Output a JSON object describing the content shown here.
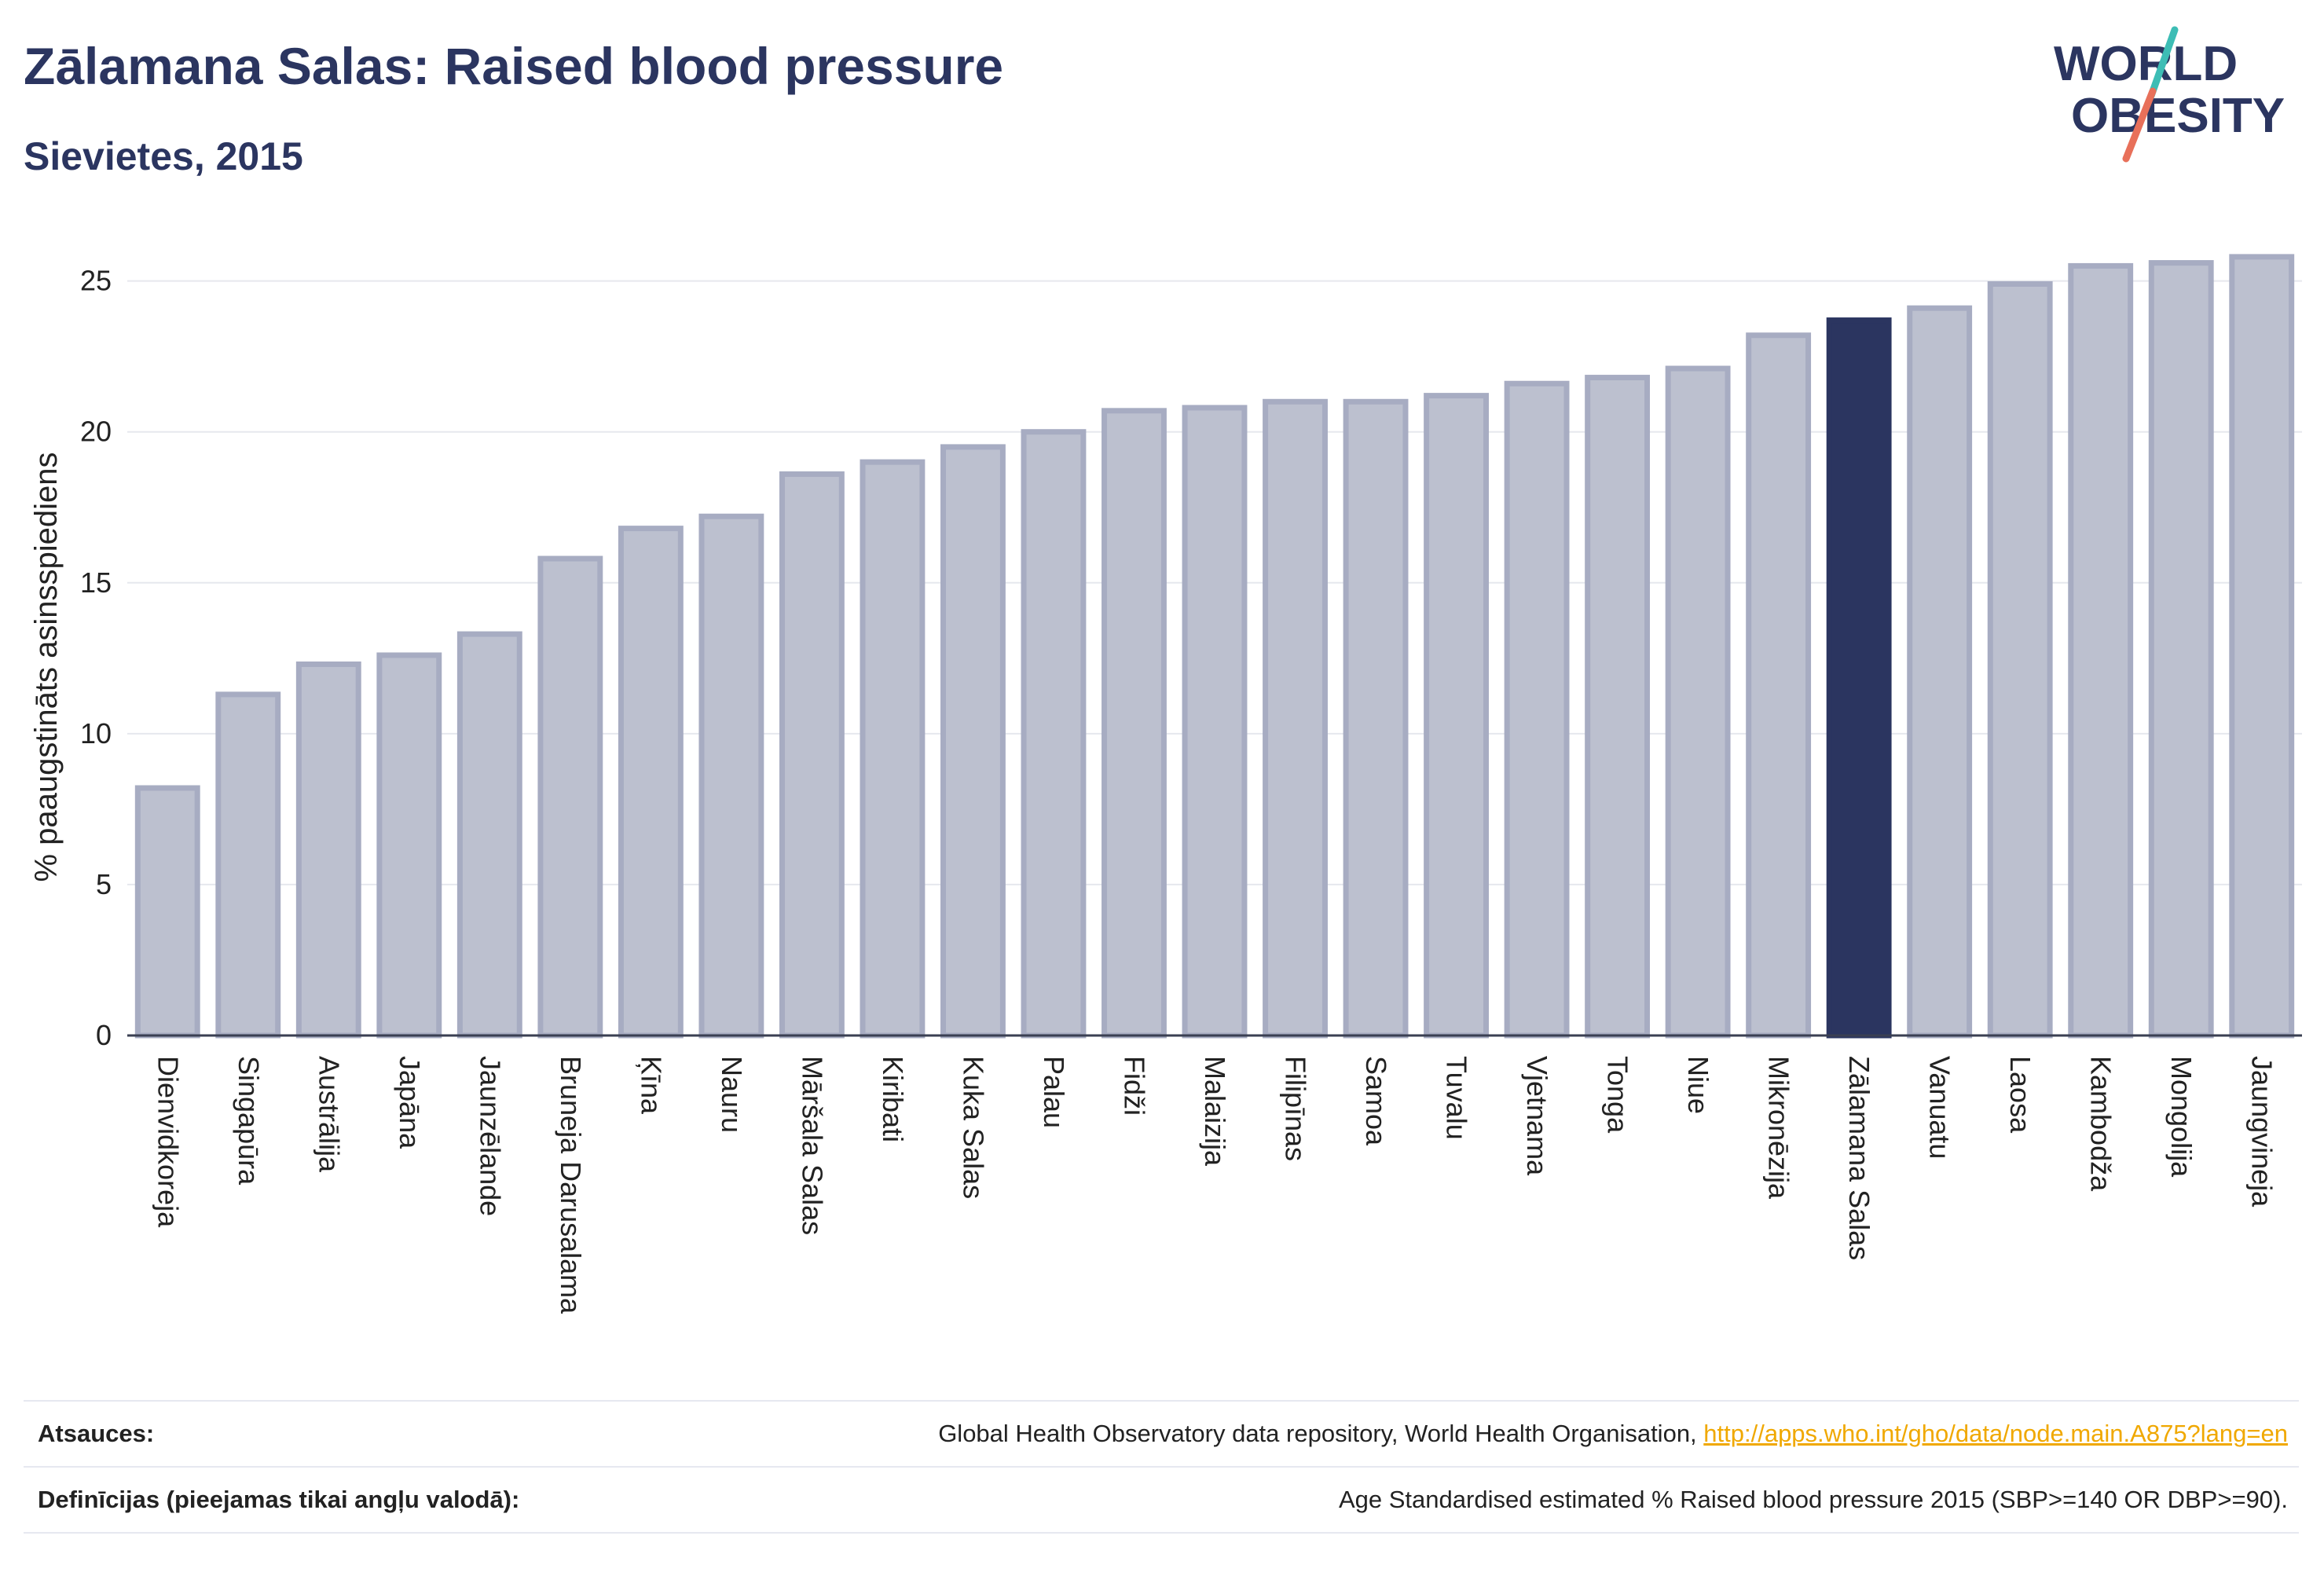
{
  "header": {
    "title": "Zālamana Salas: Raised blood pressure",
    "subtitle": "Sievietes, 2015"
  },
  "logo": {
    "line1": "WORLD",
    "line2": "OBESITY",
    "accent_teal": "#3dbdb5",
    "accent_coral": "#e8705a"
  },
  "chart_data": {
    "type": "bar",
    "ylabel": "% paaugstināts asinsspiediens",
    "ylim": [
      0,
      26.5
    ],
    "yticks": [
      0,
      5,
      10,
      15,
      20,
      25
    ],
    "grid": true,
    "highlight": "Zālamana Salas",
    "colors": {
      "bar": "#bcc0cf",
      "bar_border": "#a7acc2",
      "highlight": "#2b3560"
    },
    "categories": [
      "Dienvidkoreja",
      "Singapūra",
      "Austrālija",
      "Japāna",
      "Jaunzēlande",
      "Bruneja Darusalama",
      "Ķīna",
      "Nauru",
      "Māršala Salas",
      "Kiribati",
      "Kuka Salas",
      "Palau",
      "Fidži",
      "Malaizija",
      "Filipīnas",
      "Samoa",
      "Tuvalu",
      "Vjetnama",
      "Tonga",
      "Niue",
      "Mikronēzija",
      "Zālamana Salas",
      "Vanuatu",
      "Laosa",
      "Kambodža",
      "Mongolija",
      "Jaungvineja"
    ],
    "values": [
      8.2,
      11.3,
      12.3,
      12.6,
      13.3,
      15.8,
      16.8,
      17.2,
      18.6,
      19.0,
      19.5,
      20.0,
      20.7,
      20.8,
      21.0,
      21.0,
      21.2,
      21.6,
      21.8,
      22.1,
      23.2,
      23.7,
      24.1,
      24.9,
      25.5,
      25.6,
      25.8
    ]
  },
  "footer": {
    "sources_label": "Atsauces:",
    "sources_text": "Global Health Observatory data repository, World Health Organisation, ",
    "sources_link": "http://apps.who.int/gho/data/node.main.A875?lang=en",
    "definitions_label": "Definīcijas (pieejamas tikai angļu valodā):",
    "definitions_text": "Age Standardised estimated % Raised blood pressure 2015 (SBP>=140 OR DBP>=90)."
  }
}
